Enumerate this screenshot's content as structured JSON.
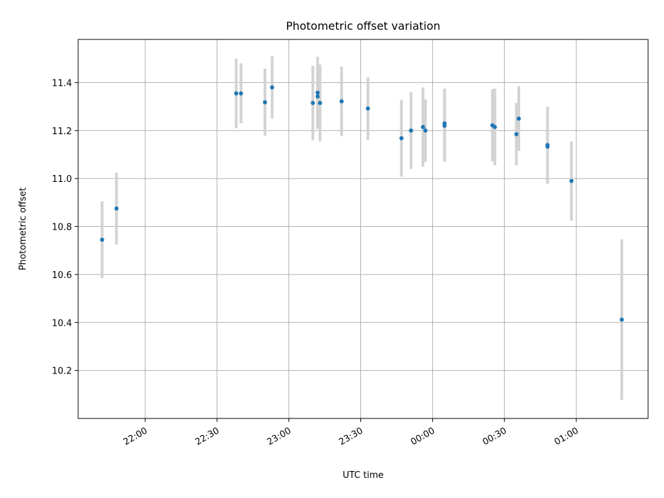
{
  "chart_data": {
    "type": "scatter",
    "title": "Photometric offset variation",
    "xlabel": "UTC time",
    "ylabel": "Photometric offset",
    "x_ticks": [
      "22:00",
      "22:30",
      "23:00",
      "23:30",
      "00:00",
      "00:30",
      "01:00"
    ],
    "y_ticks": [
      "10.2",
      "10.4",
      "10.6",
      "10.8",
      "11.0",
      "11.2",
      "11.4"
    ],
    "xlim": [
      "21:32",
      "01:30"
    ],
    "ylim": [
      10.0,
      11.58
    ],
    "grid": true,
    "colors": {
      "point": "#1f77b4",
      "errorbar": "#d3d3d3",
      "grid": "#b0b0b0"
    },
    "points": [
      {
        "x": "21:42",
        "y": 10.745,
        "yerr": 0.16
      },
      {
        "x": "21:48",
        "y": 10.875,
        "yerr": 0.15
      },
      {
        "x": "22:38",
        "y": 11.355,
        "yerr": 0.145
      },
      {
        "x": "22:40",
        "y": 11.355,
        "yerr": 0.125
      },
      {
        "x": "22:50",
        "y": 11.318,
        "yerr": 0.14
      },
      {
        "x": "22:53",
        "y": 11.38,
        "yerr": 0.13
      },
      {
        "x": "23:10",
        "y": 11.315,
        "yerr": 0.155
      },
      {
        "x": "23:12",
        "y": 11.358,
        "yerr": 0.15
      },
      {
        "x": "23:12",
        "y": 11.342,
        "yerr": 0.135
      },
      {
        "x": "23:13",
        "y": 11.315,
        "yerr": 0.16
      },
      {
        "x": "23:22",
        "y": 11.322,
        "yerr": 0.145
      },
      {
        "x": "23:33",
        "y": 11.292,
        "yerr": 0.13
      },
      {
        "x": "23:47",
        "y": 11.168,
        "yerr": 0.16
      },
      {
        "x": "23:51",
        "y": 11.2,
        "yerr": 0.16
      },
      {
        "x": "23:56",
        "y": 11.215,
        "yerr": 0.165
      },
      {
        "x": "23:57",
        "y": 11.2,
        "yerr": 0.13
      },
      {
        "x": "00:05",
        "y": 11.22,
        "yerr": 0.15
      },
      {
        "x": "00:05",
        "y": 11.23,
        "yerr": 0.145
      },
      {
        "x": "00:25",
        "y": 11.222,
        "yerr": 0.15
      },
      {
        "x": "00:26",
        "y": 11.215,
        "yerr": 0.16
      },
      {
        "x": "00:35",
        "y": 11.185,
        "yerr": 0.13
      },
      {
        "x": "00:36",
        "y": 11.25,
        "yerr": 0.135
      },
      {
        "x": "00:48",
        "y": 11.14,
        "yerr": 0.16
      },
      {
        "x": "00:48",
        "y": 11.133,
        "yerr": 0.155
      },
      {
        "x": "00:58",
        "y": 10.99,
        "yerr": 0.165
      },
      {
        "x": "01:19",
        "y": 10.412,
        "yerr": 0.335
      }
    ]
  }
}
